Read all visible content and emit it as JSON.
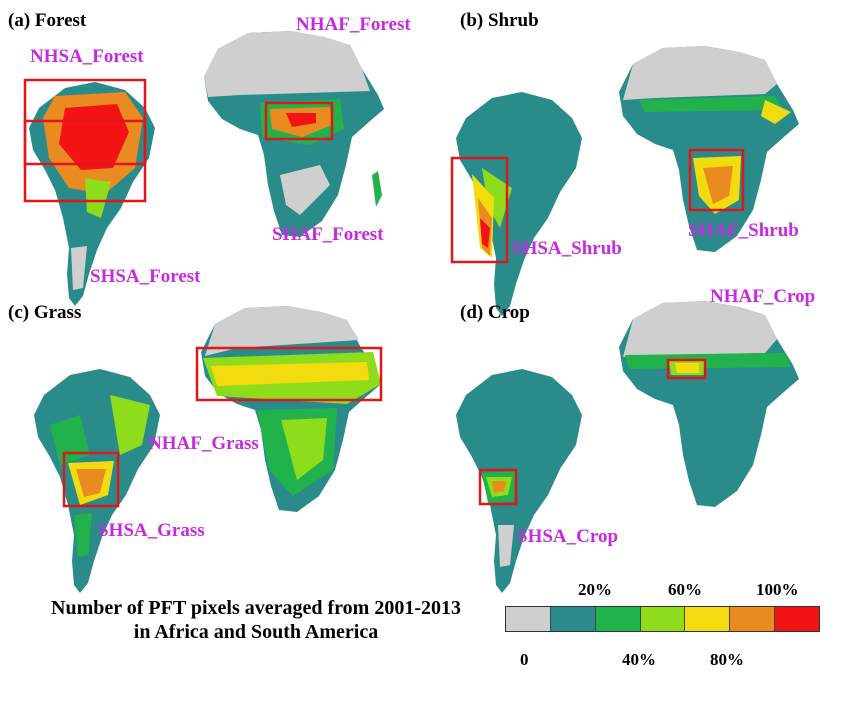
{
  "panels": {
    "a": {
      "title": "(a) Forest"
    },
    "b": {
      "title": "(b) Shrub"
    },
    "c": {
      "title": "(c) Grass"
    },
    "d": {
      "title": "(d) Crop"
    }
  },
  "region_labels": {
    "nhsa_forest": "NHSA_Forest",
    "nhaf_forest": "NHAF_Forest",
    "shaf_forest": "SHAF_Forest",
    "shsa_forest": "SHSA_Forest",
    "shsa_shrub": "SHSA_Shrub",
    "shaf_shrub": "SHAF_Shrub",
    "nhaf_grass": "NHAF_Grass",
    "shsa_grass": "SHSA_Grass",
    "nhaf_crop": "NHAF_Crop",
    "shsa_crop": "SHSA_Crop"
  },
  "colors": {
    "label": "#c728e0",
    "box": "#e0161a",
    "land_base": "#2a8c8a",
    "desert": "#cfcfcf",
    "green": "#21b24b",
    "lime": "#8edc1c",
    "yellow": "#f2dc10",
    "orange": "#ea8b21",
    "red": "#f21414"
  },
  "legend": {
    "title_line1": "Number of PFT pixels averaged from 2001-2013",
    "title_line2": "in Africa and South America",
    "ticks_top": [
      "20%",
      "60%",
      "100%"
    ],
    "ticks_bottom": [
      "0",
      "40%",
      "80%"
    ],
    "bins": [
      "#cfcfcf",
      "#2a8c8a",
      "#21b24b",
      "#8edc1c",
      "#f2dc10",
      "#ea8b21",
      "#f21414"
    ]
  }
}
